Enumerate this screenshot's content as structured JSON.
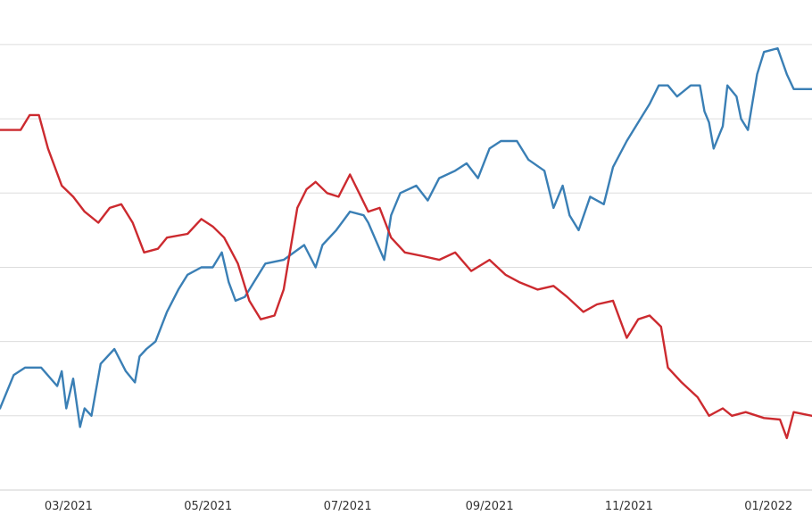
{
  "chart_data": {
    "type": "line",
    "title": "",
    "xlabel": "",
    "ylabel": "",
    "x_ticks": [
      {
        "label": "03/2021",
        "date": "2021-03-01"
      },
      {
        "label": "05/2021",
        "date": "2021-05-01"
      },
      {
        "label": "07/2021",
        "date": "2021-07-01"
      },
      {
        "label": "09/2021",
        "date": "2021-09-01"
      },
      {
        "label": "11/2021",
        "date": "2021-11-01"
      },
      {
        "label": "01/2022",
        "date": "2022-01-01"
      }
    ],
    "xlim": [
      "2021-01-30",
      "2022-01-20"
    ],
    "ylim": [
      0,
      6.6
    ],
    "gridlines_y": [
      1,
      2,
      3,
      4,
      5,
      6
    ],
    "grid": "horizontal",
    "legend": "none",
    "series": [
      {
        "color": "#3a7fb5",
        "points": [
          [
            "2021-01-30",
            1.1
          ],
          [
            "2021-02-05",
            1.55
          ],
          [
            "2021-02-10",
            1.65
          ],
          [
            "2021-02-17",
            1.65
          ],
          [
            "2021-02-24",
            1.4
          ],
          [
            "2021-02-26",
            1.6
          ],
          [
            "2021-02-28",
            1.1
          ],
          [
            "2021-03-03",
            1.5
          ],
          [
            "2021-03-06",
            0.85
          ],
          [
            "2021-03-08",
            1.1
          ],
          [
            "2021-03-11",
            1.0
          ],
          [
            "2021-03-15",
            1.7
          ],
          [
            "2021-03-21",
            1.9
          ],
          [
            "2021-03-26",
            1.6
          ],
          [
            "2021-03-30",
            1.45
          ],
          [
            "2021-04-01",
            1.8
          ],
          [
            "2021-04-04",
            1.9
          ],
          [
            "2021-04-08",
            2.0
          ],
          [
            "2021-04-13",
            2.4
          ],
          [
            "2021-04-18",
            2.7
          ],
          [
            "2021-04-22",
            2.9
          ],
          [
            "2021-04-28",
            3.0
          ],
          [
            "2021-05-03",
            3.0
          ],
          [
            "2021-05-07",
            3.2
          ],
          [
            "2021-05-10",
            2.8
          ],
          [
            "2021-05-13",
            2.55
          ],
          [
            "2021-05-17",
            2.6
          ],
          [
            "2021-05-21",
            2.8
          ],
          [
            "2021-05-26",
            3.05
          ],
          [
            "2021-06-03",
            3.1
          ],
          [
            "2021-06-12",
            3.3
          ],
          [
            "2021-06-17",
            3.0
          ],
          [
            "2021-06-20",
            3.3
          ],
          [
            "2021-06-26",
            3.5
          ],
          [
            "2021-07-02",
            3.75
          ],
          [
            "2021-07-08",
            3.7
          ],
          [
            "2021-07-10",
            3.6
          ],
          [
            "2021-07-17",
            3.1
          ],
          [
            "2021-07-20",
            3.7
          ],
          [
            "2021-07-24",
            4.0
          ],
          [
            "2021-07-31",
            4.1
          ],
          [
            "2021-08-05",
            3.9
          ],
          [
            "2021-08-10",
            4.2
          ],
          [
            "2021-08-17",
            4.3
          ],
          [
            "2021-08-22",
            4.4
          ],
          [
            "2021-08-27",
            4.2
          ],
          [
            "2021-09-01",
            4.6
          ],
          [
            "2021-09-06",
            4.7
          ],
          [
            "2021-09-13",
            4.7
          ],
          [
            "2021-09-18",
            4.45
          ],
          [
            "2021-09-25",
            4.3
          ],
          [
            "2021-09-29",
            3.8
          ],
          [
            "2021-10-03",
            4.1
          ],
          [
            "2021-10-06",
            3.7
          ],
          [
            "2021-10-10",
            3.5
          ],
          [
            "2021-10-15",
            3.95
          ],
          [
            "2021-10-21",
            3.85
          ],
          [
            "2021-10-25",
            4.35
          ],
          [
            "2021-10-31",
            4.7
          ],
          [
            "2021-11-06",
            5.0
          ],
          [
            "2021-11-10",
            5.2
          ],
          [
            "2021-11-14",
            5.45
          ],
          [
            "2021-11-18",
            5.45
          ],
          [
            "2021-11-22",
            5.3
          ],
          [
            "2021-11-28",
            5.45
          ],
          [
            "2021-12-02",
            5.45
          ],
          [
            "2021-12-04",
            5.1
          ],
          [
            "2021-12-06",
            4.95
          ],
          [
            "2021-12-08",
            4.6
          ],
          [
            "2021-12-12",
            4.9
          ],
          [
            "2021-12-14",
            5.45
          ],
          [
            "2021-12-18",
            5.3
          ],
          [
            "2021-12-20",
            5.0
          ],
          [
            "2021-12-23",
            4.85
          ],
          [
            "2021-12-27",
            5.6
          ],
          [
            "2021-12-30",
            5.9
          ],
          [
            "2022-01-05",
            5.95
          ],
          [
            "2022-01-09",
            5.6
          ],
          [
            "2022-01-12",
            5.4
          ],
          [
            "2022-01-20",
            5.4
          ]
        ]
      },
      {
        "color": "#cc2a2f",
        "points": [
          [
            "2021-01-30",
            4.85
          ],
          [
            "2021-02-08",
            4.85
          ],
          [
            "2021-02-12",
            5.05
          ],
          [
            "2021-02-16",
            5.05
          ],
          [
            "2021-02-20",
            4.6
          ],
          [
            "2021-02-26",
            4.1
          ],
          [
            "2021-03-03",
            3.95
          ],
          [
            "2021-03-08",
            3.75
          ],
          [
            "2021-03-14",
            3.6
          ],
          [
            "2021-03-19",
            3.8
          ],
          [
            "2021-03-24",
            3.85
          ],
          [
            "2021-03-29",
            3.6
          ],
          [
            "2021-04-03",
            3.2
          ],
          [
            "2021-04-09",
            3.25
          ],
          [
            "2021-04-13",
            3.4
          ],
          [
            "2021-04-22",
            3.45
          ],
          [
            "2021-04-28",
            3.65
          ],
          [
            "2021-05-03",
            3.55
          ],
          [
            "2021-05-08",
            3.4
          ],
          [
            "2021-05-14",
            3.05
          ],
          [
            "2021-05-19",
            2.55
          ],
          [
            "2021-05-24",
            2.3
          ],
          [
            "2021-05-30",
            2.35
          ],
          [
            "2021-06-03",
            2.7
          ],
          [
            "2021-06-09",
            3.8
          ],
          [
            "2021-06-13",
            4.05
          ],
          [
            "2021-06-17",
            4.15
          ],
          [
            "2021-06-22",
            4.0
          ],
          [
            "2021-06-27",
            3.95
          ],
          [
            "2021-07-02",
            4.25
          ],
          [
            "2021-07-06",
            4.0
          ],
          [
            "2021-07-10",
            3.75
          ],
          [
            "2021-07-15",
            3.8
          ],
          [
            "2021-07-20",
            3.4
          ],
          [
            "2021-07-26",
            3.2
          ],
          [
            "2021-08-03",
            3.15
          ],
          [
            "2021-08-10",
            3.1
          ],
          [
            "2021-08-17",
            3.2
          ],
          [
            "2021-08-24",
            2.95
          ],
          [
            "2021-09-01",
            3.1
          ],
          [
            "2021-09-08",
            2.9
          ],
          [
            "2021-09-14",
            2.8
          ],
          [
            "2021-09-22",
            2.7
          ],
          [
            "2021-09-29",
            2.75
          ],
          [
            "2021-10-05",
            2.6
          ],
          [
            "2021-10-12",
            2.4
          ],
          [
            "2021-10-18",
            2.5
          ],
          [
            "2021-10-25",
            2.55
          ],
          [
            "2021-10-31",
            2.05
          ],
          [
            "2021-11-05",
            2.3
          ],
          [
            "2021-11-10",
            2.35
          ],
          [
            "2021-11-15",
            2.2
          ],
          [
            "2021-11-18",
            1.65
          ],
          [
            "2021-11-24",
            1.45
          ],
          [
            "2021-12-01",
            1.25
          ],
          [
            "2021-12-06",
            1.0
          ],
          [
            "2021-12-12",
            1.1
          ],
          [
            "2021-12-16",
            1.0
          ],
          [
            "2021-12-22",
            1.05
          ],
          [
            "2021-12-30",
            0.97
          ],
          [
            "2022-01-06",
            0.95
          ],
          [
            "2022-01-09",
            0.7
          ],
          [
            "2022-01-12",
            1.05
          ],
          [
            "2022-01-20",
            1.0
          ]
        ]
      }
    ]
  }
}
